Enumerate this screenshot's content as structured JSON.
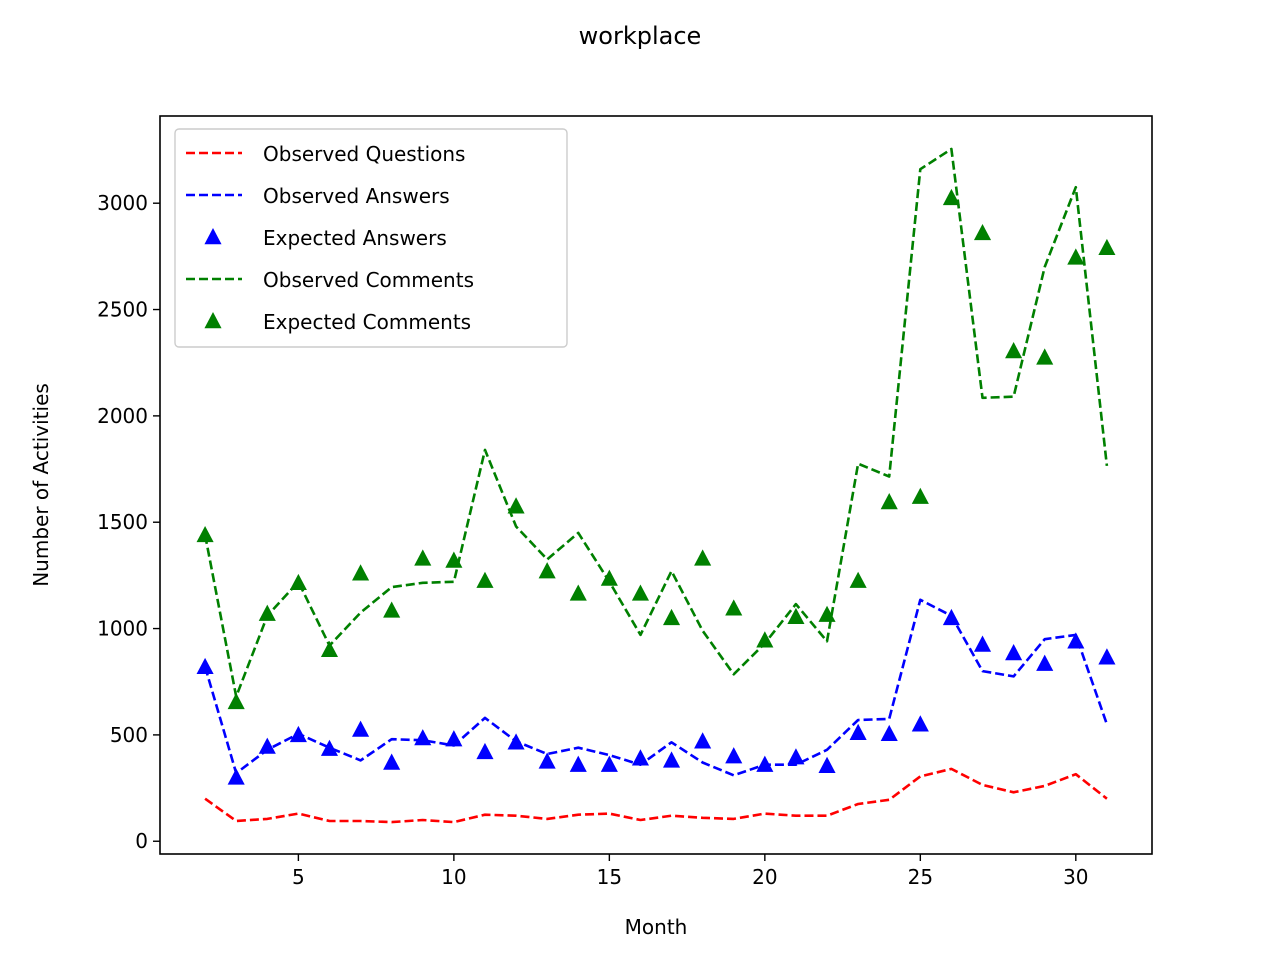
{
  "chart_data": {
    "type": "line",
    "title": "workplace",
    "xlabel": "Month",
    "ylabel": "Number of Activities",
    "xlim": [
      0.55,
      32.45
    ],
    "ylim": [
      -60,
      3410
    ],
    "xticks": [
      5,
      10,
      15,
      20,
      25,
      30
    ],
    "yticks": [
      0,
      500,
      1000,
      1500,
      2000,
      2500,
      3000
    ],
    "grid": false,
    "legend_position": "upper left",
    "x": [
      2,
      3,
      4,
      5,
      6,
      7,
      8,
      9,
      10,
      11,
      12,
      13,
      14,
      15,
      16,
      17,
      18,
      19,
      20,
      21,
      22,
      23,
      24,
      25,
      26,
      27,
      28,
      29,
      30,
      31
    ],
    "series": [
      {
        "name": "Observed Questions",
        "style": "dashed-line",
        "color": "#ff0000",
        "values": [
          200,
          95,
          105,
          130,
          95,
          95,
          90,
          100,
          90,
          125,
          120,
          105,
          125,
          130,
          100,
          120,
          110,
          105,
          130,
          120,
          120,
          175,
          195,
          305,
          340,
          265,
          230,
          260,
          315,
          200
        ]
      },
      {
        "name": "Observed Answers",
        "style": "dashed-line",
        "color": "#0000ff",
        "values": [
          820,
          320,
          430,
          505,
          440,
          380,
          480,
          475,
          450,
          580,
          470,
          410,
          440,
          405,
          360,
          465,
          370,
          310,
          360,
          360,
          430,
          570,
          575,
          1135,
          1060,
          800,
          775,
          950,
          970,
          550
        ]
      },
      {
        "name": "Expected Answers",
        "style": "triangle-marker",
        "color": "#0000ff",
        "values": [
          820,
          300,
          445,
          500,
          435,
          525,
          370,
          485,
          480,
          420,
          465,
          375,
          360,
          360,
          390,
          380,
          470,
          400,
          360,
          395,
          355,
          510,
          505,
          550,
          1050,
          925,
          885,
          835,
          940,
          865
        ]
      },
      {
        "name": "Observed Comments",
        "style": "dashed-line",
        "color": "#008000",
        "values": [
          1440,
          680,
          1060,
          1220,
          920,
          1075,
          1195,
          1215,
          1220,
          1840,
          1480,
          1325,
          1450,
          1220,
          970,
          1270,
          990,
          785,
          930,
          1115,
          940,
          1775,
          1715,
          3160,
          3255,
          2085,
          2090,
          2700,
          3075,
          1765
        ]
      },
      {
        "name": "Expected Comments",
        "style": "triangle-marker",
        "color": "#008000",
        "values": [
          1440,
          655,
          1070,
          1215,
          900,
          1260,
          1085,
          1330,
          1320,
          1225,
          1575,
          1270,
          1165,
          1235,
          1165,
          1050,
          1330,
          1095,
          945,
          1055,
          1065,
          1225,
          1595,
          1620,
          3025,
          2860,
          2305,
          2275,
          2745,
          2790
        ]
      }
    ]
  }
}
